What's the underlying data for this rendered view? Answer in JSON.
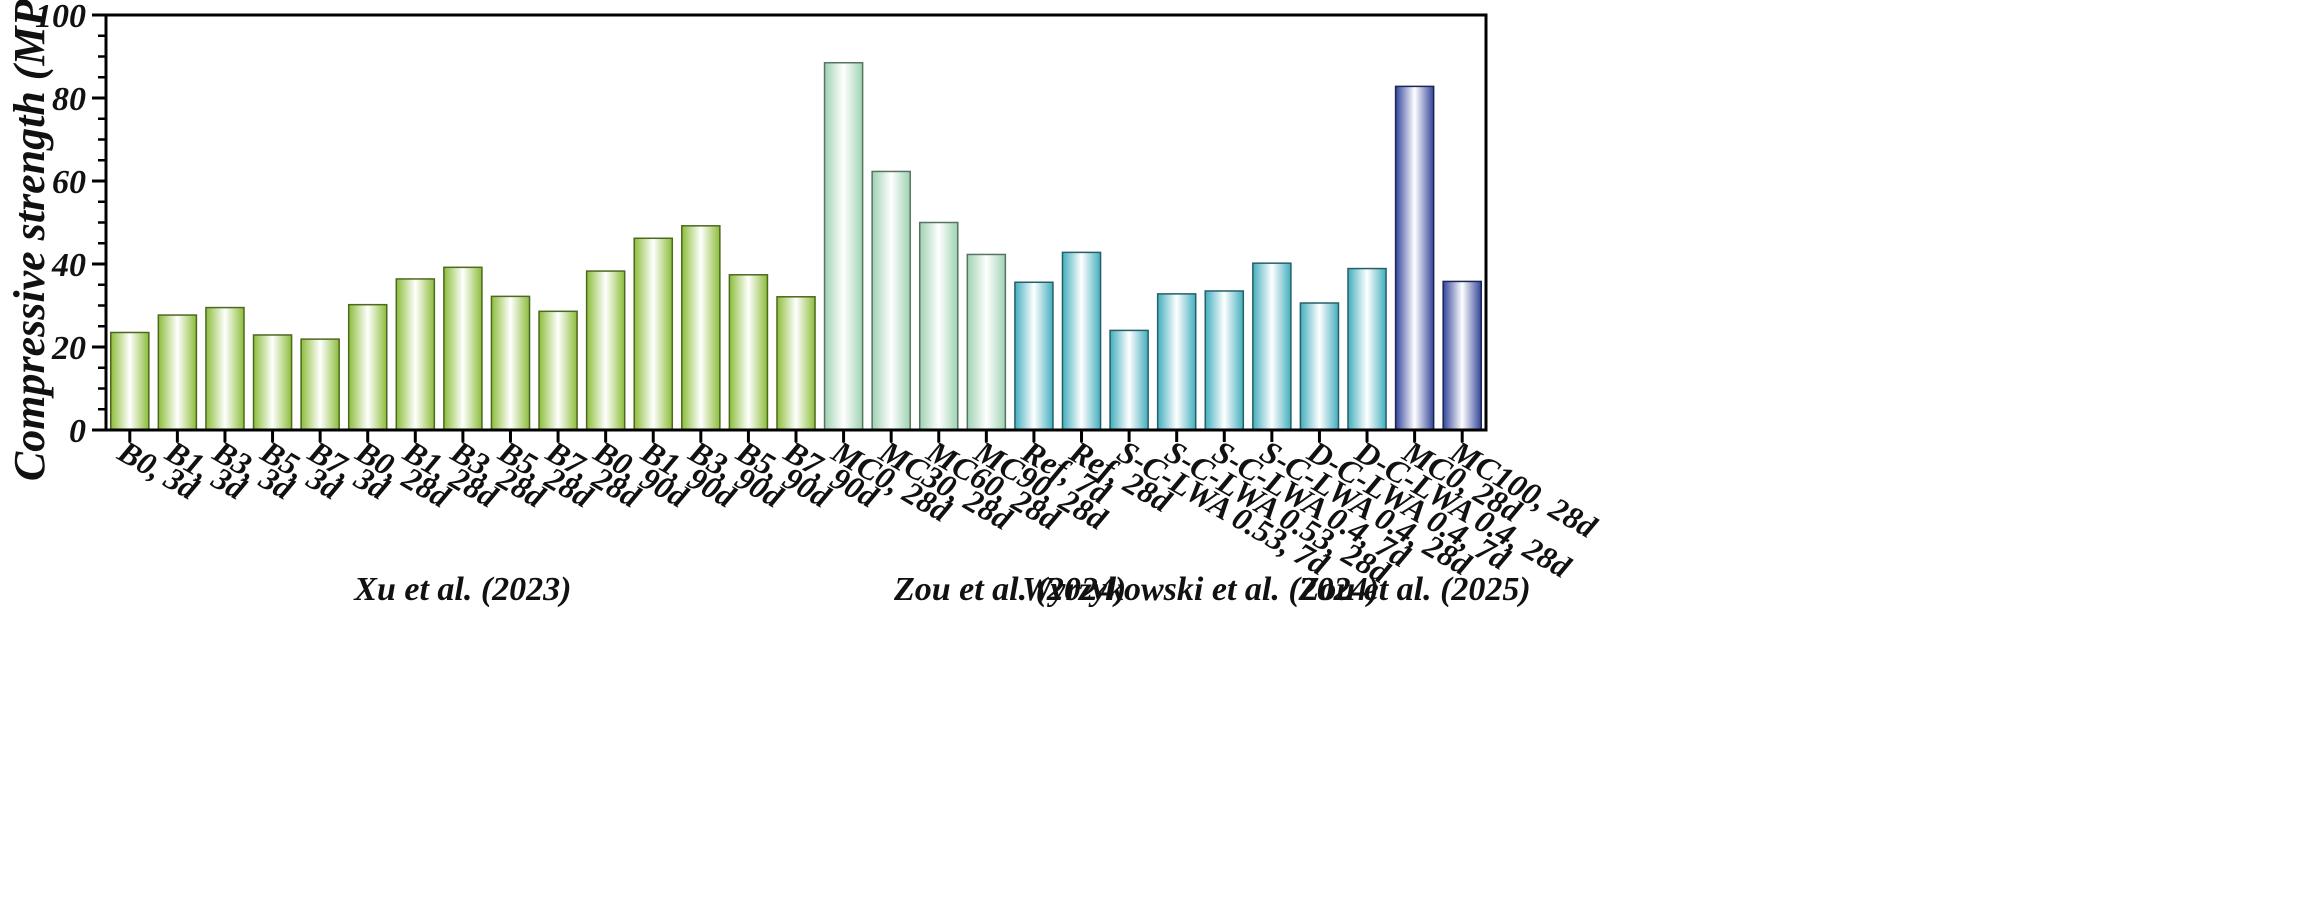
{
  "chart_data": {
    "type": "bar",
    "ylabel": "Compressive strength (MPa)",
    "xlabel": "",
    "ylim": [
      0,
      100
    ],
    "yticks": [
      0,
      20,
      40,
      60,
      80,
      100
    ],
    "minor_ticks_per_major": 4,
    "grid": false,
    "categories": [
      "B0, 3d",
      "B1, 3d",
      "B3, 3d",
      "B5, 3d",
      "B7, 3d",
      "B0, 28d",
      "B1, 28d",
      "B3, 28d",
      "B5, 28d",
      "B7, 28d",
      "B0, 90d",
      "B1, 90d",
      "B3, 90d",
      "B5, 90d",
      "B7, 90d",
      "MC0, 28d",
      "MC30, 28d",
      "MC60, 28d",
      "MC90, 28d",
      "Ref, 7d",
      "Ref, 28d",
      "S-C-LWA 0.53, 7d",
      "S-C-LWA 0.53, 28d",
      "S-C-LWA 0.4, 7d",
      "S-C-LWA 0.4, 28d",
      "D-C-LWA 0.4, 7d",
      "D-C-LWA 0.4, 28d",
      "MC0, 28d",
      "MC100, 28d"
    ],
    "values": [
      23.5,
      27.7,
      29.5,
      22.9,
      21.9,
      30.2,
      36.4,
      39.2,
      32.2,
      28.6,
      38.3,
      46.2,
      49.2,
      37.4,
      32.1,
      88.5,
      62.3,
      50.0,
      42.3,
      35.6,
      42.8,
      24.0,
      32.8,
      33.5,
      40.2,
      30.6,
      38.9,
      82.8,
      35.8
    ],
    "groups": [
      {
        "label": "Xu et al. (2023)",
        "start": 0,
        "end": 14,
        "color": "#8cbd3a"
      },
      {
        "label": "Zou et al. (2024)",
        "start": 15,
        "end": 18,
        "color": "#9ed2b2"
      },
      {
        "label": "Wyrzykowski et al. (2024)",
        "start": 19,
        "end": 26,
        "color": "#43aebe"
      },
      {
        "label": "Zou et al. (2025)",
        "start": 27,
        "end": 28,
        "color": "#33459a"
      }
    ],
    "group_label_positions": [
      {
        "group": 0,
        "center_category": 7
      },
      {
        "group": 1,
        "center_category": 18.5
      },
      {
        "group": 2,
        "center_category": 22.5
      },
      {
        "group": 3,
        "center_category": 27
      }
    ]
  }
}
